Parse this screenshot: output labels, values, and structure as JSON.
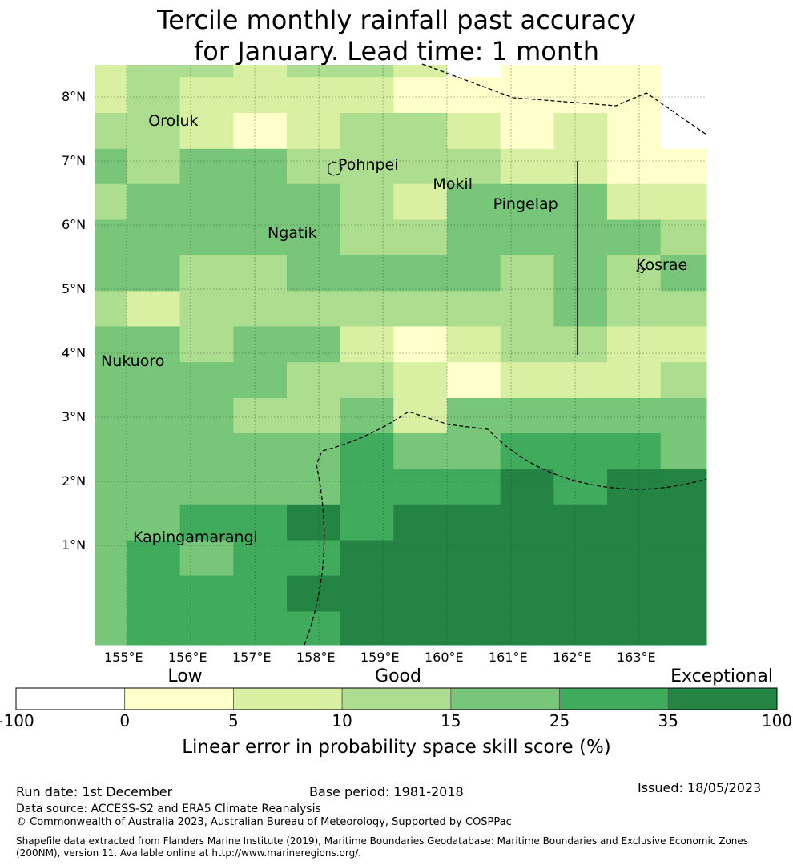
{
  "title": {
    "line1": "Tercile monthly rainfall past accuracy",
    "line2": "for January. Lead time: 1 month"
  },
  "chart_data": {
    "type": "heatmap",
    "title": "Tercile monthly rainfall past accuracy for January. Lead time: 1 month",
    "xlabel": "Longitude",
    "ylabel": "Latitude",
    "lon_range": [
      154.5,
      164.05
    ],
    "lat_range": [
      -0.55,
      8.5
    ],
    "lon_edges": [
      154.5,
      155.0,
      155.833,
      156.667,
      157.5,
      158.333,
      159.167,
      160.0,
      160.833,
      161.667,
      162.5,
      163.333,
      164.05
    ],
    "lat_edges_north_to_south": [
      8.5,
      8.31,
      7.75,
      7.19,
      6.64,
      6.08,
      5.53,
      4.97,
      4.42,
      3.86,
      3.3,
      2.75,
      2.19,
      1.64,
      1.08,
      0.53,
      -0.03,
      -0.55
    ],
    "category_note": "values are colour-bin indices 0..6 matching colorbar bins (0: -100-0, 1: 0-5, 2: 5-10, 3: 10-15, 4: 15-25, 5: 25-35, 6: 35-100)",
    "grid": [
      [
        2,
        3,
        3,
        2,
        3,
        3,
        2,
        0,
        1,
        1,
        1,
        0
      ],
      [
        2,
        3,
        2,
        2,
        2,
        2,
        1,
        1,
        1,
        1,
        1,
        0
      ],
      [
        3,
        3,
        2,
        1,
        2,
        3,
        3,
        2,
        1,
        2,
        1,
        0
      ],
      [
        4,
        3,
        4,
        4,
        3,
        3,
        3,
        3,
        2,
        2,
        1,
        1
      ],
      [
        3,
        4,
        4,
        4,
        4,
        3,
        2,
        4,
        4,
        4,
        2,
        2
      ],
      [
        4,
        4,
        4,
        4,
        4,
        3,
        3,
        4,
        4,
        4,
        4,
        3
      ],
      [
        4,
        4,
        3,
        3,
        4,
        4,
        4,
        4,
        3,
        4,
        3,
        4
      ],
      [
        3,
        2,
        3,
        3,
        3,
        3,
        3,
        3,
        3,
        4,
        3,
        3
      ],
      [
        4,
        4,
        3,
        4,
        4,
        2,
        1,
        2,
        3,
        3,
        2,
        2
      ],
      [
        4,
        4,
        4,
        4,
        3,
        3,
        2,
        1,
        2,
        2,
        2,
        3
      ],
      [
        4,
        4,
        4,
        3,
        3,
        4,
        2,
        4,
        4,
        4,
        4,
        4
      ],
      [
        4,
        4,
        4,
        4,
        4,
        5,
        4,
        4,
        5,
        5,
        5,
        4
      ],
      [
        4,
        4,
        4,
        4,
        4,
        5,
        5,
        5,
        6,
        5,
        6,
        6
      ],
      [
        4,
        4,
        5,
        5,
        6,
        5,
        6,
        6,
        6,
        6,
        6,
        6
      ],
      [
        4,
        5,
        4,
        5,
        5,
        6,
        6,
        6,
        6,
        6,
        6,
        6
      ],
      [
        4,
        5,
        5,
        5,
        6,
        6,
        6,
        6,
        6,
        6,
        6,
        6
      ],
      [
        4,
        5,
        5,
        5,
        5,
        6,
        6,
        6,
        6,
        6,
        6,
        6
      ]
    ],
    "x_ticks": [
      "155°E",
      "156°E",
      "157°E",
      "158°E",
      "159°E",
      "160°E",
      "161°E",
      "162°E",
      "163°E"
    ],
    "x_tick_values": [
      155,
      156,
      157,
      158,
      159,
      160,
      161,
      162,
      163
    ],
    "y_ticks": [
      "8°N",
      "7°N",
      "6°N",
      "5°N",
      "4°N",
      "3°N",
      "2°N",
      "1°N"
    ],
    "y_tick_values": [
      8,
      7,
      6,
      5,
      4,
      3,
      2,
      1
    ],
    "islands": [
      {
        "name": "Oroluk",
        "lon": 155.34,
        "lat": 7.55
      },
      {
        "name": "Pohnpei",
        "lon": 158.3,
        "lat": 6.86
      },
      {
        "name": "Mokil",
        "lon": 159.78,
        "lat": 6.56
      },
      {
        "name": "Pingelap",
        "lon": 160.72,
        "lat": 6.25
      },
      {
        "name": "Ngatik",
        "lon": 157.2,
        "lat": 5.8
      },
      {
        "name": "Kosrae",
        "lon": 162.95,
        "lat": 5.3
      },
      {
        "name": "Nukuoro",
        "lon": 154.6,
        "lat": 3.8
      },
      {
        "name": "Kapingamarangi",
        "lon": 155.1,
        "lat": 1.05
      }
    ]
  },
  "colorbar": {
    "title": "Linear error in probability space skill score (%)",
    "boundaries": [
      "-100",
      "0",
      "5",
      "10",
      "15",
      "25",
      "35",
      "100"
    ],
    "colors": [
      "#ffffff",
      "#ffffcc",
      "#d9f0a3",
      "#addd8e",
      "#78c679",
      "#41ab5d",
      "#238443"
    ],
    "categories": [
      "Low",
      "Good",
      "Exceptional"
    ]
  },
  "footer": {
    "run_date": "Run date: 1st December",
    "base_period": "Base period: 1981-2018",
    "issued": "Issued: 18/05/2023",
    "data_source": "Data source: ACCESS-S2 and ERA5 Climate Reanalysis",
    "copyright": "© Commonwealth of Australia 2023, Australian Bureau of Meteorology, Supported by COSPPac",
    "shapefile_line1": "Shapefile data extracted from Flanders Marine Institute (2019), Maritime Boundaries Geodatabase: Maritime Boundaries and Exclusive Economic Zones",
    "shapefile_line2": "(200NM), version 11. Available online at http://www.marineregions.org/."
  }
}
